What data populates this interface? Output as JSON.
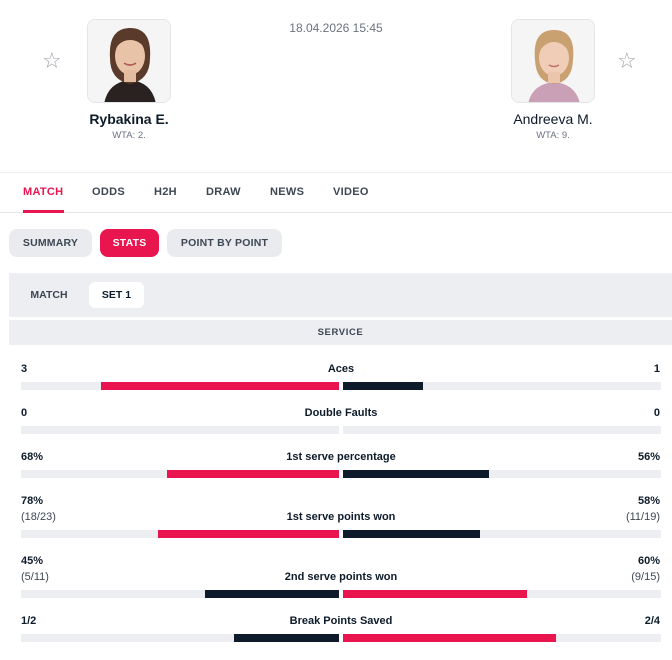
{
  "header": {
    "datetime": "18.04.2026 15:45",
    "home": {
      "name": "Rybakina E.",
      "rank": "WTA: 2."
    },
    "away": {
      "name": "Andreeva M.",
      "rank": "WTA: 9."
    },
    "star_glyph": "☆",
    "icons": {
      "favorite": "star-outline-icon"
    }
  },
  "tabs": [
    {
      "label": "MATCH",
      "active": true
    },
    {
      "label": "ODDS",
      "active": false
    },
    {
      "label": "H2H",
      "active": false
    },
    {
      "label": "DRAW",
      "active": false
    },
    {
      "label": "NEWS",
      "active": false
    },
    {
      "label": "VIDEO",
      "active": false
    }
  ],
  "pills": [
    {
      "label": "SUMMARY",
      "active": false
    },
    {
      "label": "STATS",
      "active": true
    },
    {
      "label": "POINT BY POINT",
      "active": false
    }
  ],
  "subtabs": [
    {
      "label": "MATCH",
      "active": false
    },
    {
      "label": "SET 1",
      "active": true
    }
  ],
  "section": {
    "title": "SERVICE"
  },
  "colors": {
    "accent": "#e8154f",
    "dark": "#0d1b2a",
    "track": "#eceef1"
  },
  "stats": [
    {
      "label": "Aces",
      "home": "3",
      "away": "1",
      "home_sub": "",
      "away_sub": "",
      "home_share": 0.75,
      "away_share": 0.25,
      "leader": "home"
    },
    {
      "label": "Double Faults",
      "home": "0",
      "away": "0",
      "home_sub": "",
      "away_sub": "",
      "home_share": 0,
      "away_share": 0,
      "leader": "none"
    },
    {
      "label": "1st serve percentage",
      "home": "68%",
      "away": "56%",
      "home_sub": "",
      "away_sub": "",
      "home_share": 0.54,
      "away_share": 0.46,
      "leader": "home"
    },
    {
      "label": "1st serve points won",
      "home": "78%",
      "away": "58%",
      "home_sub": "(18/23)",
      "away_sub": "(11/19)",
      "home_share": 0.57,
      "away_share": 0.43,
      "leader": "home"
    },
    {
      "label": "2nd serve points won",
      "home": "45%",
      "away": "60%",
      "home_sub": "(5/11)",
      "away_sub": "(9/15)",
      "home_share": 0.42,
      "away_share": 0.58,
      "leader": "away"
    },
    {
      "label": "Break Points Saved",
      "home": "1/2",
      "away": "2/4",
      "home_sub": "",
      "away_sub": "",
      "home_share": 0.33,
      "away_share": 0.67,
      "leader": "away"
    }
  ]
}
